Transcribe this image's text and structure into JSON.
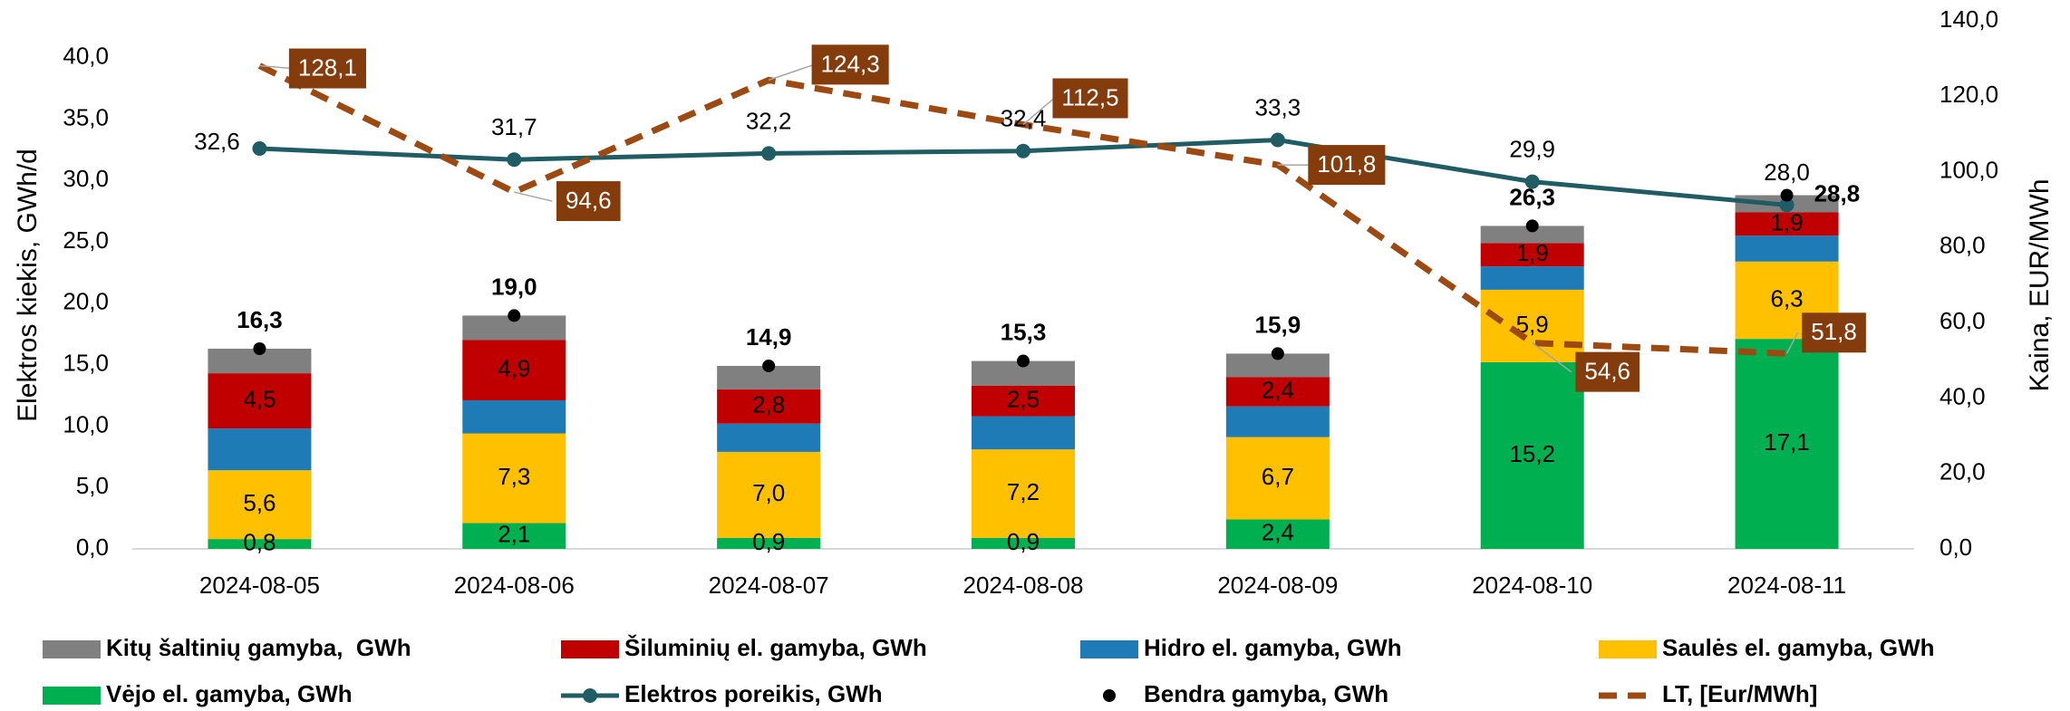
{
  "chart_data": {
    "type": "bar",
    "categories": [
      "2024-08-05",
      "2024-08-06",
      "2024-08-07",
      "2024-08-08",
      "2024-08-09",
      "2024-08-10",
      "2024-08-11"
    ],
    "y_label": "Elektros kiekis, GWh/d",
    "y2_label": "Kaina, EUR/MWh",
    "ylim": [
      0,
      43
    ],
    "yticks": [
      {
        "value": 0,
        "label": "0,0"
      },
      {
        "value": 5,
        "label": "5,0"
      },
      {
        "value": 10,
        "label": "10,0"
      },
      {
        "value": 15,
        "label": "15,0"
      },
      {
        "value": 20,
        "label": "20,0"
      },
      {
        "value": 25,
        "label": "25,0"
      },
      {
        "value": 30,
        "label": "30,0"
      },
      {
        "value": 35,
        "label": "35,0"
      },
      {
        "value": 40,
        "label": "40,0"
      }
    ],
    "y2lim": [
      0,
      140
    ],
    "y2ticks": [
      {
        "value": 0,
        "label": "0,0"
      },
      {
        "value": 20,
        "label": "20,0"
      },
      {
        "value": 40,
        "label": "40,0"
      },
      {
        "value": 60,
        "label": "60,0"
      },
      {
        "value": 80,
        "label": "80,0"
      },
      {
        "value": 100,
        "label": "100,0"
      },
      {
        "value": 120,
        "label": "120,0"
      },
      {
        "value": 140,
        "label": "140,0"
      }
    ],
    "stacked": true,
    "series": [
      {
        "name": "Vėjo el. gamyba, GWh",
        "type": "bar",
        "color": "#00b050",
        "values": [
          0.8,
          2.1,
          0.9,
          0.9,
          2.4,
          15.2,
          17.1
        ],
        "value_labels": [
          "0,8",
          "2,1",
          "0,9",
          "0,9",
          "2,4",
          "15,2",
          "17,1"
        ]
      },
      {
        "name": "Saulės el. gamyba, GWh",
        "type": "bar",
        "color": "#ffc000",
        "values": [
          5.6,
          7.3,
          7.0,
          7.2,
          6.7,
          5.9,
          6.3
        ],
        "value_labels": [
          "5,6",
          "7,3",
          "7,0",
          "7,2",
          "6,7",
          "5,9",
          "6,3"
        ]
      },
      {
        "name": "Hidro el. gamyba, GWh",
        "type": "bar",
        "color": "#1f7bb6",
        "values": [
          3.4,
          2.7,
          2.3,
          2.7,
          2.5,
          1.9,
          2.1
        ]
      },
      {
        "name": "Šiluminių el. gamyba, GWh",
        "type": "bar",
        "color": "#c00000",
        "values": [
          4.5,
          4.9,
          2.8,
          2.5,
          2.4,
          1.9,
          1.9
        ],
        "value_labels": [
          "4,5",
          "4,9",
          "2,8",
          "2,5",
          "2,4",
          "1,9",
          "1,9"
        ]
      },
      {
        "name": "Kitų šaltinių gamyba,  GWh",
        "type": "bar",
        "color": "#808080",
        "values": [
          2.0,
          2.0,
          1.9,
          2.0,
          1.9,
          1.4,
          1.4
        ]
      },
      {
        "name": "Elektros poreikis, GWh",
        "type": "line",
        "color": "#1f5c63",
        "values": [
          32.6,
          31.7,
          32.2,
          32.4,
          33.3,
          29.9,
          28.0
        ],
        "value_labels": [
          "32,6",
          "31,7",
          "32,2",
          "32,4",
          "33,3",
          "29,9",
          "28,0"
        ]
      },
      {
        "name": "Bendra gamyba, GWh",
        "type": "scatter",
        "color": "#000000",
        "values": [
          16.3,
          19.0,
          14.9,
          15.3,
          15.9,
          26.3,
          28.8
        ],
        "value_labels": [
          "16,3",
          "19,0",
          "14,9",
          "15,3",
          "15,9",
          "26,3",
          "28,8"
        ]
      },
      {
        "name": "LT, [Eur/MWh]",
        "type": "dashed-line",
        "axis": "y2",
        "color": "#9c4a12",
        "label_color": "#843c0c",
        "values": [
          128.1,
          94.6,
          124.3,
          112.5,
          101.8,
          54.6,
          51.8
        ],
        "value_labels": [
          "128,1",
          "94,6",
          "124,3",
          "112,5",
          "101,8",
          "54,6",
          "51,8"
        ]
      }
    ],
    "legend_order": [
      4,
      3,
      2,
      1,
      0,
      5,
      6,
      7
    ],
    "legend": "bottom"
  }
}
